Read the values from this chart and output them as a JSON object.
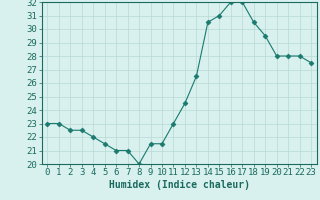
{
  "x": [
    0,
    1,
    2,
    3,
    4,
    5,
    6,
    7,
    8,
    9,
    10,
    11,
    12,
    13,
    14,
    15,
    16,
    17,
    18,
    19,
    20,
    21,
    22,
    23
  ],
  "y": [
    23,
    23,
    22.5,
    22.5,
    22,
    21.5,
    21,
    21,
    20,
    21.5,
    21.5,
    23,
    24.5,
    26.5,
    30.5,
    31,
    32,
    32,
    30.5,
    29.5,
    28,
    28,
    28,
    27.5
  ],
  "line_color": "#1a7a6e",
  "marker": "D",
  "marker_size": 2.5,
  "bg_color": "#d8f0ee",
  "grid_color": "#b8d8d4",
  "xlabel": "Humidex (Indice chaleur)",
  "ylim": [
    20,
    32
  ],
  "xlim": [
    -0.5,
    23.5
  ],
  "yticks": [
    20,
    21,
    22,
    23,
    24,
    25,
    26,
    27,
    28,
    29,
    30,
    31,
    32
  ],
  "xticks": [
    0,
    1,
    2,
    3,
    4,
    5,
    6,
    7,
    8,
    9,
    10,
    11,
    12,
    13,
    14,
    15,
    16,
    17,
    18,
    19,
    20,
    21,
    22,
    23
  ],
  "title_color": "#1a6a5e",
  "label_fontsize": 7,
  "tick_fontsize": 6.5
}
